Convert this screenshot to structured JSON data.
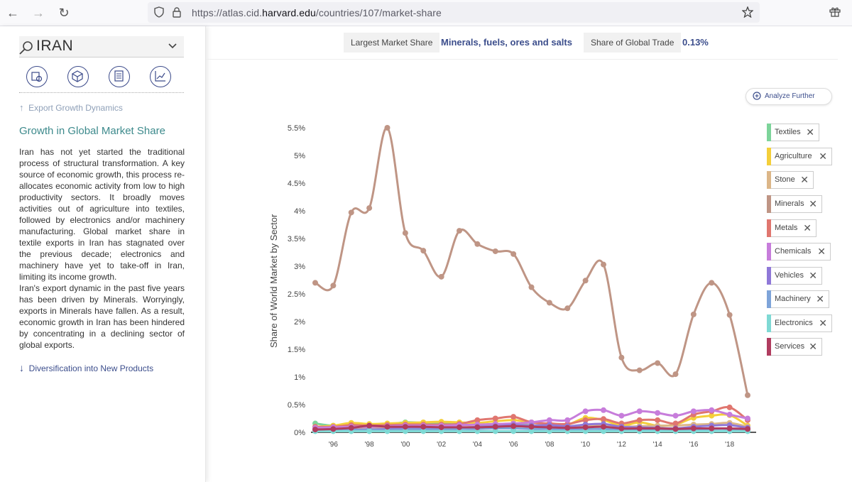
{
  "browser": {
    "url_prefix": "https://atlas.cid.",
    "url_domain": "harvard.edu",
    "url_path": "/countries/107/market-share"
  },
  "sidebar": {
    "country": "IRAN",
    "prev_link": "Export Growth Dynamics",
    "heading": "Growth in Global Market Share",
    "paragraph1": "Iran has not yet started the traditional process of structural transformation. A key source of economic growth, this process re-allocates economic activity from low to high productivity sectors. It broadly moves activities out of agriculture into textiles, followed by electronics and/or machinery manufacturing. Global market share in textile exports in Iran has stagnated over the previous decade; electronics and machinery have yet to take-off in Iran, limiting its income growth.",
    "paragraph2": "Iran's export dynamic in the past five years has been driven by Minerals. Worryingly, exports in Minerals have fallen. As a result, economic growth in Iran has been hindered by concentrating in a declining sector of global exports.",
    "next_link": "Diversification into New Products"
  },
  "topbar": {
    "largest_label": "Largest Market Share",
    "largest_value": "Minerals, fuels, ores and salts",
    "global_label": "Share of Global Trade",
    "global_value": "0.13%"
  },
  "analyze_label": "Analyze Further",
  "colors": {
    "textiles": "#7dd49a",
    "agriculture": "#f4cf3a",
    "stone": "#dcb688",
    "minerals": "#bf9585",
    "metals": "#e0766f",
    "chemicals": "#c77ddb",
    "vehicles": "#8f78d8",
    "machinery": "#7ea4d9",
    "electronics": "#7fd9d4",
    "services": "#b03c5f"
  },
  "chart_data": {
    "type": "line",
    "ylabel": "Share of World Market by Sector",
    "y_ticks": [
      "0%",
      "0.5%",
      "1%",
      "1.5%",
      "2%",
      "2.5%",
      "3%",
      "3.5%",
      "4%",
      "4.5%",
      "5%",
      "5.5%"
    ],
    "ylim": [
      0,
      5.6
    ],
    "x_tick_labels": [
      "'96",
      "'98",
      "'00",
      "'02",
      "'04",
      "'06",
      "'08",
      "'10",
      "'12",
      "'14",
      "'16",
      "'18"
    ],
    "x": [
      1995,
      1996,
      1997,
      1998,
      1999,
      2000,
      2001,
      2002,
      2003,
      2004,
      2005,
      2006,
      2007,
      2008,
      2009,
      2010,
      2011,
      2012,
      2013,
      2014,
      2015,
      2016,
      2017,
      2018,
      2019
    ],
    "series": [
      {
        "name": "Textiles",
        "key": "textiles",
        "values": [
          0.16,
          0.12,
          0.15,
          0.12,
          0.14,
          0.18,
          0.17,
          0.16,
          0.15,
          0.14,
          0.15,
          0.14,
          0.13,
          0.1,
          0.09,
          0.1,
          0.11,
          0.08,
          0.07,
          0.06,
          0.05,
          0.06,
          0.07,
          0.06,
          0.05
        ]
      },
      {
        "name": "Agriculture",
        "key": "agriculture",
        "values": [
          0.1,
          0.12,
          0.17,
          0.15,
          0.16,
          0.17,
          0.18,
          0.19,
          0.18,
          0.17,
          0.2,
          0.22,
          0.18,
          0.15,
          0.14,
          0.26,
          0.22,
          0.12,
          0.18,
          0.12,
          0.14,
          0.26,
          0.3,
          0.31,
          0.12
        ]
      },
      {
        "name": "Stone",
        "key": "stone",
        "values": [
          0.08,
          0.07,
          0.08,
          0.07,
          0.08,
          0.08,
          0.08,
          0.09,
          0.09,
          0.1,
          0.11,
          0.12,
          0.13,
          0.12,
          0.1,
          0.12,
          0.13,
          0.1,
          0.11,
          0.12,
          0.12,
          0.14,
          0.15,
          0.17,
          0.1
        ]
      },
      {
        "name": "Minerals",
        "key": "minerals",
        "values": [
          2.7,
          2.65,
          3.97,
          4.05,
          5.5,
          3.6,
          3.28,
          2.81,
          3.64,
          3.4,
          3.27,
          3.22,
          2.62,
          2.34,
          2.24,
          2.74,
          3.03,
          1.35,
          1.12,
          1.25,
          1.05,
          2.13,
          2.7,
          2.12,
          0.67
        ]
      },
      {
        "name": "Metals",
        "key": "metals",
        "values": [
          0.1,
          0.1,
          0.13,
          0.12,
          0.13,
          0.14,
          0.14,
          0.14,
          0.15,
          0.22,
          0.25,
          0.28,
          0.18,
          0.16,
          0.15,
          0.22,
          0.24,
          0.16,
          0.22,
          0.22,
          0.16,
          0.32,
          0.38,
          0.45,
          0.22
        ]
      },
      {
        "name": "Chemicals",
        "key": "chemicals",
        "values": [
          0.08,
          0.09,
          0.1,
          0.1,
          0.11,
          0.12,
          0.12,
          0.12,
          0.13,
          0.14,
          0.15,
          0.16,
          0.18,
          0.22,
          0.22,
          0.38,
          0.4,
          0.3,
          0.38,
          0.35,
          0.3,
          0.38,
          0.4,
          0.32,
          0.25
        ]
      },
      {
        "name": "Vehicles",
        "key": "vehicles",
        "values": [
          0.04,
          0.04,
          0.05,
          0.05,
          0.06,
          0.07,
          0.07,
          0.08,
          0.08,
          0.1,
          0.11,
          0.13,
          0.12,
          0.13,
          0.11,
          0.14,
          0.15,
          0.1,
          0.09,
          0.08,
          0.07,
          0.1,
          0.12,
          0.13,
          0.08
        ]
      },
      {
        "name": "Machinery",
        "key": "machinery",
        "values": [
          0.03,
          0.03,
          0.04,
          0.04,
          0.04,
          0.05,
          0.05,
          0.05,
          0.06,
          0.06,
          0.07,
          0.07,
          0.06,
          0.06,
          0.05,
          0.06,
          0.06,
          0.05,
          0.04,
          0.04,
          0.04,
          0.05,
          0.06,
          0.06,
          0.04
        ]
      },
      {
        "name": "Electronics",
        "key": "electronics",
        "values": [
          0.02,
          0.02,
          0.02,
          0.02,
          0.02,
          0.02,
          0.02,
          0.02,
          0.02,
          0.02,
          0.02,
          0.02,
          0.02,
          0.02,
          0.02,
          0.02,
          0.02,
          0.02,
          0.02,
          0.02,
          0.02,
          0.02,
          0.02,
          0.02,
          0.02
        ]
      },
      {
        "name": "Services",
        "key": "services",
        "values": [
          0.05,
          0.06,
          0.08,
          0.12,
          0.1,
          0.1,
          0.1,
          0.09,
          0.09,
          0.09,
          0.1,
          0.11,
          0.1,
          0.09,
          0.08,
          0.09,
          0.1,
          0.07,
          0.07,
          0.07,
          0.06,
          0.07,
          0.07,
          0.07,
          0.06
        ]
      }
    ]
  }
}
